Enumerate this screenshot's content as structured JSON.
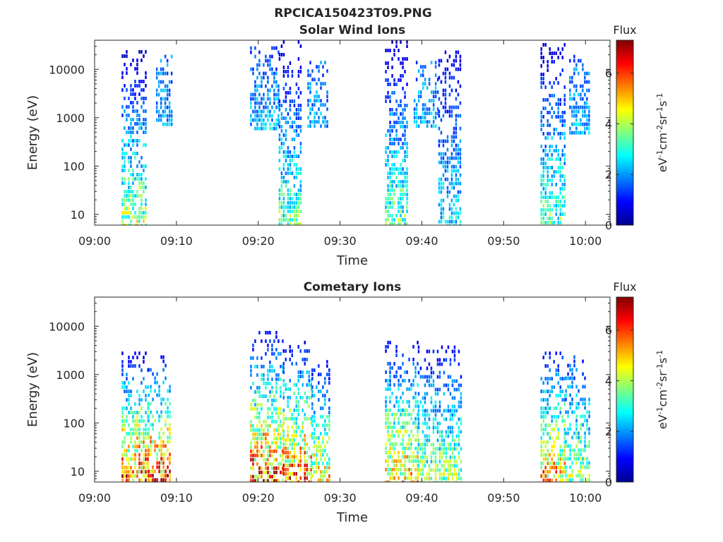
{
  "figure_title": "RPCICA150423T09.PNG",
  "chart_data": [
    {
      "type": "heatmap",
      "title": "Solar Wind Ions",
      "xlabel": "Time",
      "ylabel": "Energy (eV)",
      "y_scale": "log",
      "x_ticks": [
        "09:00",
        "09:10",
        "09:20",
        "09:30",
        "09:40",
        "09:50",
        "10:00"
      ],
      "y_ticks": [
        "10",
        "100",
        "1000",
        "10000"
      ],
      "y_tick_values": [
        10,
        100,
        1000,
        10000
      ],
      "xlim": [
        "09:00",
        "10:03"
      ],
      "ylim": [
        6,
        40000
      ],
      "colorbar": {
        "title": "Flux",
        "label": "eV-1cm-2sr-1s-1",
        "ticks": [
          "0",
          "2",
          "4",
          "6"
        ],
        "range": [
          0,
          7.3
        ],
        "colormap": "jet"
      },
      "bursts": [
        {
          "t_start": 3.3,
          "t_end": 6.2,
          "e_min": 6,
          "e_max": 25000,
          "flux_low": 4.5,
          "flux_high": 0.5
        },
        {
          "t_start": 7.5,
          "t_end": 9.5,
          "e_min": 700,
          "e_max": 20000,
          "flux_low": 2.5,
          "flux_high": 2.0
        },
        {
          "t_start": 19.0,
          "t_end": 22.5,
          "e_min": 600,
          "e_max": 30000,
          "flux_low": 2.8,
          "flux_high": 1.5
        },
        {
          "t_start": 22.5,
          "t_end": 25.3,
          "e_min": 6,
          "e_max": 40000,
          "flux_low": 4.0,
          "flux_high": 0.6
        },
        {
          "t_start": 26.0,
          "t_end": 28.5,
          "e_min": 600,
          "e_max": 15000,
          "flux_low": 2.5,
          "flux_high": 2.0
        },
        {
          "t_start": 35.5,
          "t_end": 38.3,
          "e_min": 6,
          "e_max": 40000,
          "flux_low": 4.0,
          "flux_high": 0.6
        },
        {
          "t_start": 39.0,
          "t_end": 42.0,
          "e_min": 700,
          "e_max": 15000,
          "flux_low": 2.5,
          "flux_high": 2.0
        },
        {
          "t_start": 42.0,
          "t_end": 44.8,
          "e_min": 6,
          "e_max": 30000,
          "flux_low": 3.0,
          "flux_high": 0.8
        },
        {
          "t_start": 54.5,
          "t_end": 57.5,
          "e_min": 6,
          "e_max": 35000,
          "flux_low": 4.0,
          "flux_high": 0.7
        },
        {
          "t_start": 58.0,
          "t_end": 60.5,
          "e_min": 500,
          "e_max": 20000,
          "flux_low": 2.5,
          "flux_high": 2.0
        }
      ]
    },
    {
      "type": "heatmap",
      "title": "Cometary Ions",
      "xlabel": "Time",
      "ylabel": "Energy (eV)",
      "y_scale": "log",
      "x_ticks": [
        "09:00",
        "09:10",
        "09:20",
        "09:30",
        "09:40",
        "09:50",
        "10:00"
      ],
      "y_ticks": [
        "10",
        "100",
        "1000",
        "10000"
      ],
      "y_tick_values": [
        10,
        100,
        1000,
        10000
      ],
      "xlim": [
        "09:00",
        "10:03"
      ],
      "ylim": [
        6,
        40000
      ],
      "colorbar": {
        "title": "Flux",
        "label": "eV-1cm-2sr-1s-1",
        "ticks": [
          "0",
          "2",
          "4",
          "6"
        ],
        "range": [
          0,
          7.3
        ],
        "colormap": "jet"
      },
      "bursts": [
        {
          "t_start": 3.3,
          "t_end": 6.5,
          "e_min": 6,
          "e_max": 3000,
          "flux_low": 7.0,
          "flux_high": 1.0
        },
        {
          "t_start": 6.5,
          "t_end": 9.3,
          "e_min": 6,
          "e_max": 2500,
          "flux_low": 7.2,
          "flux_high": 1.0
        },
        {
          "t_start": 19.0,
          "t_end": 23.0,
          "e_min": 6,
          "e_max": 8000,
          "flux_low": 7.0,
          "flux_high": 1.0
        },
        {
          "t_start": 23.0,
          "t_end": 26.5,
          "e_min": 6,
          "e_max": 5000,
          "flux_low": 6.8,
          "flux_high": 1.0
        },
        {
          "t_start": 26.5,
          "t_end": 28.8,
          "e_min": 6,
          "e_max": 2000,
          "flux_low": 5.5,
          "flux_high": 1.0
        },
        {
          "t_start": 35.5,
          "t_end": 39.5,
          "e_min": 6,
          "e_max": 5000,
          "flux_low": 5.8,
          "flux_high": 1.0
        },
        {
          "t_start": 39.5,
          "t_end": 44.8,
          "e_min": 6,
          "e_max": 4000,
          "flux_low": 4.5,
          "flux_high": 1.0
        },
        {
          "t_start": 54.5,
          "t_end": 57.5,
          "e_min": 6,
          "e_max": 3000,
          "flux_low": 6.0,
          "flux_high": 1.2
        },
        {
          "t_start": 57.5,
          "t_end": 60.5,
          "e_min": 6,
          "e_max": 2500,
          "flux_low": 4.5,
          "flux_high": 1.5
        }
      ]
    }
  ]
}
